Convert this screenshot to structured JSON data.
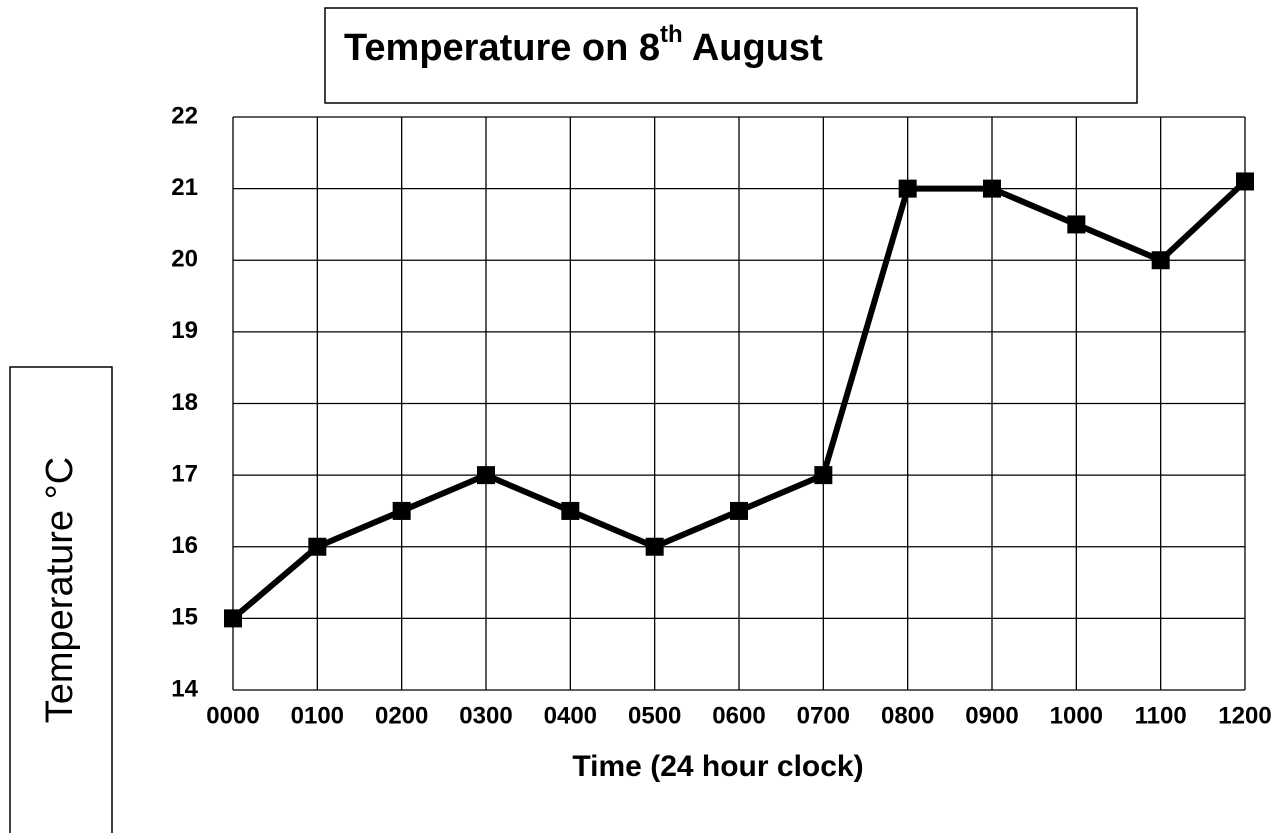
{
  "chart_data": {
    "type": "line",
    "title": "Temperature on 8th August",
    "x_label": "Time (24 hour clock)",
    "y_label": "Temperature °C",
    "categories": [
      "0000",
      "0100",
      "0200",
      "0300",
      "0400",
      "0500",
      "0600",
      "0700",
      "0800",
      "0900",
      "1000",
      "1100",
      "1200"
    ],
    "series": [
      {
        "name": "Temperature",
        "color": "#000000",
        "values": [
          15,
          16,
          16.5,
          17,
          16.5,
          16,
          16.5,
          17,
          21,
          21,
          20.5,
          20,
          21.1
        ]
      }
    ],
    "ylim": [
      14,
      22
    ],
    "yticks": [
      14,
      15,
      16,
      17,
      18,
      19,
      20,
      21,
      22
    ],
    "grid": true
  }
}
